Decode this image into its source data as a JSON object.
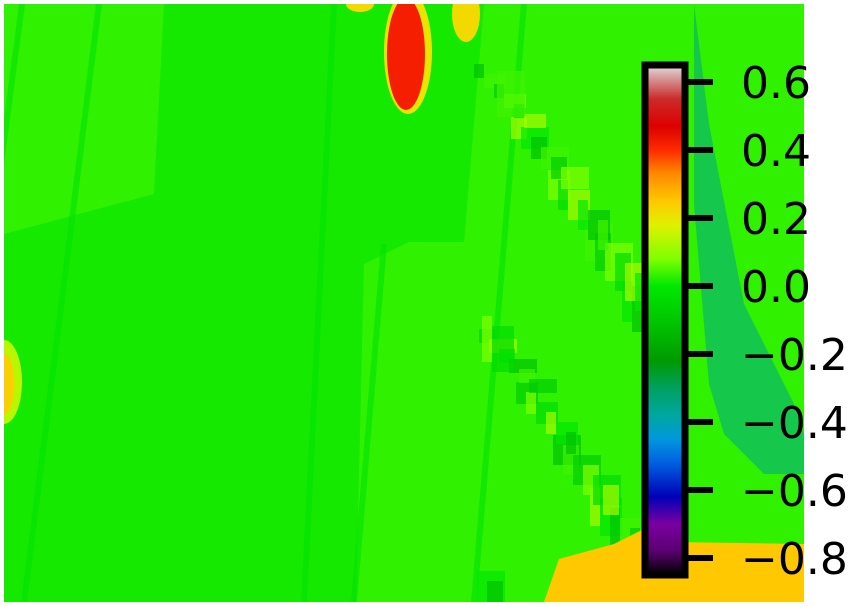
{
  "chart_data": {
    "type": "heatmap",
    "title": "",
    "xlabel": "",
    "ylabel": "",
    "colormap": "nipy_spectral",
    "value_range": [
      -0.85,
      0.65
    ],
    "colorbar": {
      "ticks": [
        0.6,
        0.4,
        0.2,
        0.0,
        -0.2,
        -0.4,
        -0.6,
        -0.8
      ],
      "tick_labels": [
        "0.6",
        "0.4",
        "0.2",
        "0.0",
        "−0.2",
        "−0.4",
        "−0.6",
        "−0.8"
      ],
      "colors": [
        {
          "value": -0.85,
          "color": "#000000"
        },
        {
          "value": -0.78,
          "color": "#5a0070"
        },
        {
          "value": -0.7,
          "color": "#7a00a0"
        },
        {
          "value": -0.62,
          "color": "#0000b8"
        },
        {
          "value": -0.52,
          "color": "#0060e0"
        },
        {
          "value": -0.45,
          "color": "#0098dd"
        },
        {
          "value": -0.38,
          "color": "#00a7a0"
        },
        {
          "value": -0.3,
          "color": "#00a060"
        },
        {
          "value": -0.22,
          "color": "#009a00"
        },
        {
          "value": -0.12,
          "color": "#00c000"
        },
        {
          "value": 0.0,
          "color": "#00e800"
        },
        {
          "value": 0.08,
          "color": "#80ff00"
        },
        {
          "value": 0.18,
          "color": "#e0f000"
        },
        {
          "value": 0.25,
          "color": "#ffc800"
        },
        {
          "value": 0.33,
          "color": "#ff8a00"
        },
        {
          "value": 0.4,
          "color": "#ff2a00"
        },
        {
          "value": 0.47,
          "color": "#dd0000"
        },
        {
          "value": 0.55,
          "color": "#cc2a2a"
        },
        {
          "value": 0.62,
          "color": "#d8a8a8"
        },
        {
          "value": 0.65,
          "color": "#e8e0e0"
        }
      ]
    },
    "regions": [
      {
        "name": "background",
        "value": 0.03
      },
      {
        "name": "rectangle-upper",
        "value": -0.02
      },
      {
        "name": "top-hot-spot",
        "value": 0.42
      },
      {
        "name": "left-edge-spot",
        "value": 0.24
      },
      {
        "name": "bottom-right-patch",
        "value": 0.25
      },
      {
        "name": "right-edge-streak",
        "value": -0.35
      }
    ]
  }
}
